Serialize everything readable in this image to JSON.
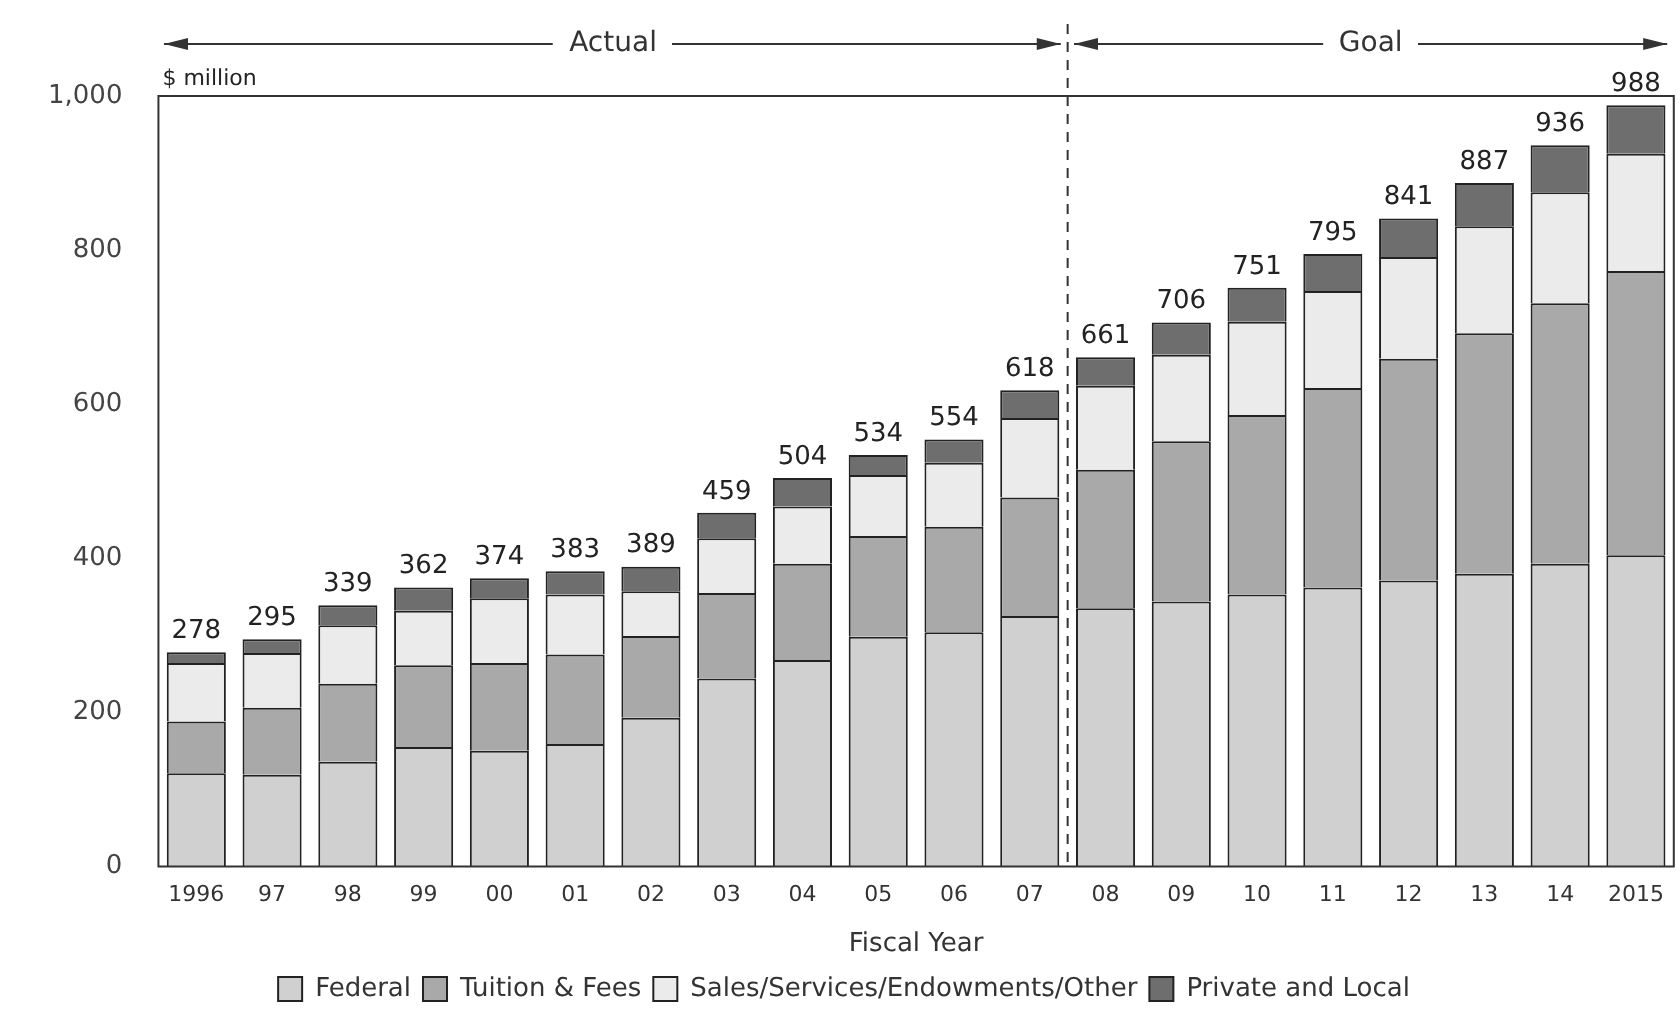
{
  "chart_data": {
    "type": "bar",
    "stacked": true,
    "xlabel": "Fiscal Year",
    "ylabel": "$ million",
    "categories": [
      "1996",
      "97",
      "98",
      "99",
      "00",
      "01",
      "02",
      "03",
      "04",
      "05",
      "06",
      "07",
      "08",
      "09",
      "10",
      "11",
      "12",
      "13",
      "14",
      "2015"
    ],
    "series": [
      {
        "name": "Federal",
        "color": "#d0d0d0",
        "values": [
          121,
          119,
          136,
          155,
          150,
          159,
          193,
          244,
          268,
          298,
          304,
          325,
          335,
          344,
          353,
          362,
          371,
          380,
          393,
          404
        ]
      },
      {
        "name": "Tuition & Fees",
        "color": "#a9a9a9",
        "values": [
          67,
          87,
          101,
          106,
          114,
          116,
          106,
          111,
          125,
          131,
          137,
          154,
          180,
          208,
          233,
          259,
          288,
          312,
          338,
          369
        ]
      },
      {
        "name": "Sales/Services/Endowments/Other",
        "color": "#ebebeb",
        "values": [
          76,
          71,
          76,
          71,
          84,
          78,
          58,
          71,
          74,
          79,
          83,
          103,
          109,
          112,
          121,
          126,
          132,
          139,
          144,
          152
        ]
      },
      {
        "name": "Private and Local",
        "color": "#6e6e6e",
        "values": [
          14,
          18,
          26,
          30,
          26,
          30,
          32,
          33,
          37,
          26,
          30,
          36,
          37,
          42,
          44,
          48,
          50,
          56,
          61,
          63
        ]
      }
    ],
    "totals": [
      "278",
      "295",
      "339",
      "362",
      "374",
      "383",
      "389",
      "459",
      "504",
      "534",
      "554",
      "618",
      "661",
      "706",
      "751",
      "795",
      "841",
      "887",
      "936",
      "988"
    ],
    "ylim": [
      0,
      1000
    ],
    "yticks": [
      0,
      200,
      400,
      600,
      800,
      {
        "value": 1000,
        "label": "1,000"
      }
    ],
    "annotations": [
      "Actual",
      "Goal"
    ],
    "grid": false,
    "legend": "bottom"
  }
}
